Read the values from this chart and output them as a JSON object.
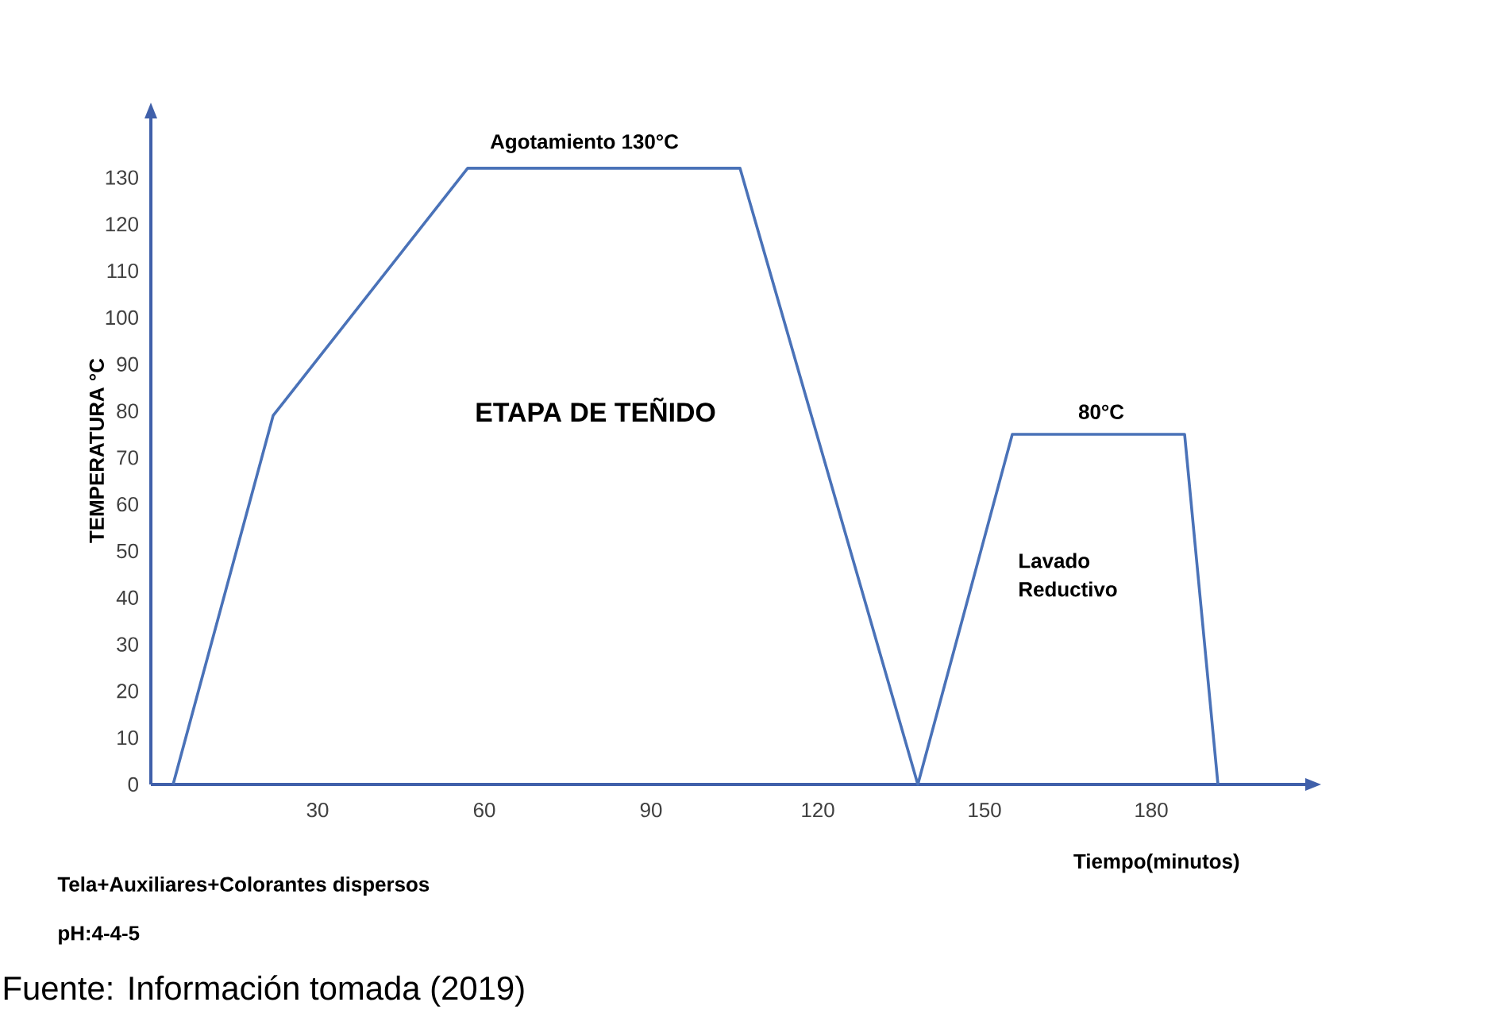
{
  "chart_data": {
    "type": "line",
    "xlabel": "Tiempo(minutos)",
    "ylabel": "TEMPERATURA °C",
    "x": [
      4,
      22,
      57,
      106,
      138,
      155,
      186,
      192
    ],
    "values": [
      0,
      79,
      132,
      132,
      0,
      75,
      75,
      0
    ],
    "color": "#4a72b8",
    "marker": "none",
    "line_style": "solid",
    "xlim": [
      0,
      208
    ],
    "ylim": [
      0,
      143
    ],
    "xticks": [
      30,
      60,
      90,
      120,
      150,
      180
    ],
    "yticks": [
      0,
      10,
      20,
      30,
      40,
      50,
      60,
      70,
      80,
      90,
      100,
      110,
      120,
      130
    ],
    "annotations": [
      {
        "text": "Agotamiento 130°C",
        "x": 78,
        "y": 132
      },
      {
        "text": "80°C",
        "x": 171,
        "y": 75
      },
      "ETAPA DE TEÑIDO",
      "Lavado Reductivo",
      "Tela+Auxiliares+Colorantes dispersos",
      "pH:4-4-5",
      "Fuente: Información tomada (2019)"
    ]
  }
}
